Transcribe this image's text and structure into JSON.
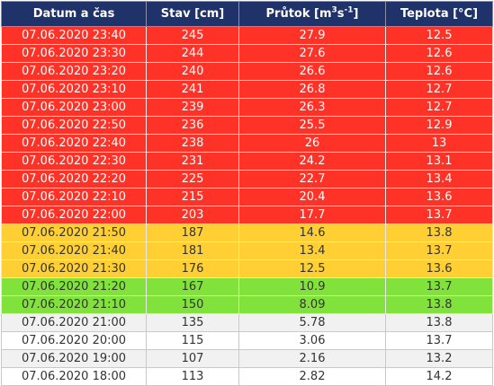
{
  "columns": {
    "datetime": "Datum a čas",
    "stage": "Stav [cm]",
    "discharge_base": "Průtok [m",
    "discharge_exp1": "3",
    "discharge_mid": "s",
    "discharge_exp2": "-1",
    "discharge_end": "]",
    "temperature": "Teplota [°C]"
  },
  "colors": {
    "header": "#1f3269",
    "red": "#fe3227",
    "yellow": "#ffcf33",
    "green": "#82e23c",
    "normal": "#ffffff",
    "normal_alt": "#f1f1f1"
  },
  "rows": [
    {
      "datetime": "07.06.2020 23:40",
      "stage": "245",
      "discharge": "27.9",
      "temperature": "12.5",
      "level": "red"
    },
    {
      "datetime": "07.06.2020 23:30",
      "stage": "244",
      "discharge": "27.6",
      "temperature": "12.6",
      "level": "red"
    },
    {
      "datetime": "07.06.2020 23:20",
      "stage": "240",
      "discharge": "26.6",
      "temperature": "12.6",
      "level": "red"
    },
    {
      "datetime": "07.06.2020 23:10",
      "stage": "241",
      "discharge": "26.8",
      "temperature": "12.7",
      "level": "red"
    },
    {
      "datetime": "07.06.2020 23:00",
      "stage": "239",
      "discharge": "26.3",
      "temperature": "12.7",
      "level": "red"
    },
    {
      "datetime": "07.06.2020 22:50",
      "stage": "236",
      "discharge": "25.5",
      "temperature": "12.9",
      "level": "red"
    },
    {
      "datetime": "07.06.2020 22:40",
      "stage": "238",
      "discharge": "26",
      "temperature": "13",
      "level": "red"
    },
    {
      "datetime": "07.06.2020 22:30",
      "stage": "231",
      "discharge": "24.2",
      "temperature": "13.1",
      "level": "red"
    },
    {
      "datetime": "07.06.2020 22:20",
      "stage": "225",
      "discharge": "22.7",
      "temperature": "13.4",
      "level": "red"
    },
    {
      "datetime": "07.06.2020 22:10",
      "stage": "215",
      "discharge": "20.4",
      "temperature": "13.6",
      "level": "red"
    },
    {
      "datetime": "07.06.2020 22:00",
      "stage": "203",
      "discharge": "17.7",
      "temperature": "13.7",
      "level": "red"
    },
    {
      "datetime": "07.06.2020 21:50",
      "stage": "187",
      "discharge": "14.6",
      "temperature": "13.8",
      "level": "yellow"
    },
    {
      "datetime": "07.06.2020 21:40",
      "stage": "181",
      "discharge": "13.4",
      "temperature": "13.7",
      "level": "yellow"
    },
    {
      "datetime": "07.06.2020 21:30",
      "stage": "176",
      "discharge": "12.5",
      "temperature": "13.6",
      "level": "yellow"
    },
    {
      "datetime": "07.06.2020 21:20",
      "stage": "167",
      "discharge": "10.9",
      "temperature": "13.7",
      "level": "green"
    },
    {
      "datetime": "07.06.2020 21:10",
      "stage": "150",
      "discharge": "8.09",
      "temperature": "13.8",
      "level": "green"
    },
    {
      "datetime": "07.06.2020 21:00",
      "stage": "135",
      "discharge": "5.78",
      "temperature": "13.8",
      "level": "normal alt"
    },
    {
      "datetime": "07.06.2020 20:00",
      "stage": "115",
      "discharge": "3.06",
      "temperature": "13.7",
      "level": "normal"
    },
    {
      "datetime": "07.06.2020 19:00",
      "stage": "107",
      "discharge": "2.16",
      "temperature": "13.2",
      "level": "normal alt"
    },
    {
      "datetime": "07.06.2020 18:00",
      "stage": "113",
      "discharge": "2.82",
      "temperature": "14.2",
      "level": "normal"
    }
  ]
}
